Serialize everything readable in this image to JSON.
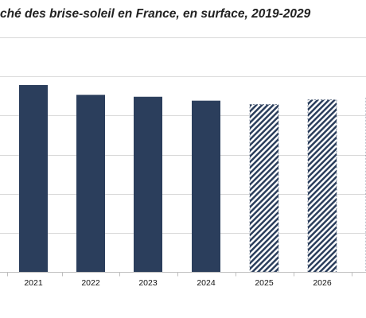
{
  "chart_data": {
    "type": "bar",
    "title": "ché des brise-soleil en France, en surface, 2019-2029",
    "categories": [
      "",
      "2021",
      "2022",
      "2023",
      "2024",
      "2025",
      "2026",
      ""
    ],
    "values": [
      null,
      4.78,
      4.53,
      4.48,
      4.38,
      4.28,
      4.4,
      4.45
    ],
    "series_style": [
      "solid",
      "solid",
      "solid",
      "solid",
      "solid",
      "hatched",
      "hatched",
      "hatched"
    ],
    "ylim": [
      0,
      6
    ],
    "grid": true,
    "xlabel": "",
    "ylabel": "",
    "colors": {
      "bar": "#2b3e5c",
      "grid": "#d9d9d9",
      "axis": "#bfbfbf",
      "hatch_bg": "#ffffff"
    }
  }
}
